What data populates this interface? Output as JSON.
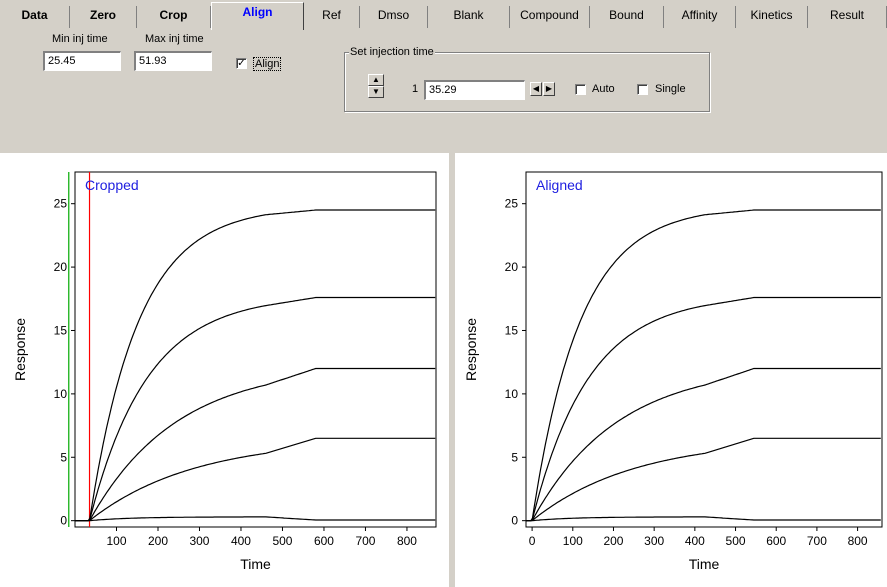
{
  "tabs": [
    {
      "label": "Data",
      "bold": true
    },
    {
      "label": "Zero",
      "bold": true
    },
    {
      "label": "Crop",
      "bold": true
    },
    {
      "label": "Align",
      "active": true
    },
    {
      "label": "Ref"
    },
    {
      "label": "Dmso"
    },
    {
      "label": "Blank"
    },
    {
      "label": "Compound"
    },
    {
      "label": "Bound"
    },
    {
      "label": "Affinity"
    },
    {
      "label": "Kinetics"
    },
    {
      "label": "Result"
    }
  ],
  "controls": {
    "min_inj_label": "Min inj time",
    "min_inj_value": "25.45",
    "max_inj_label": "Max inj time",
    "max_inj_value": "51.93",
    "align_label": "Align",
    "align_checked": "✓",
    "set_injection_label": "Set injection time",
    "injection_index": "1",
    "injection_value": "35.29",
    "auto_label": "Auto",
    "single_label": "Single"
  },
  "chart_data": [
    {
      "type": "line",
      "annotation": "Cropped",
      "xlabel": "Time",
      "ylabel": "Response",
      "xlim": [
        0,
        870
      ],
      "ylim": [
        -0.5,
        27.5
      ],
      "xticks": [
        100,
        200,
        300,
        400,
        500,
        600,
        700,
        800
      ],
      "yticks": [
        0,
        5,
        10,
        15,
        20,
        25
      ],
      "markers": [
        {
          "x": -15,
          "color": "#00aa00"
        },
        {
          "x": 35,
          "color": "#ff0000"
        }
      ],
      "series": [
        {
          "plateau": 24.5,
          "rmax": 24.8,
          "k": 0.0085,
          "t0": 35,
          "tend": 460
        },
        {
          "plateau": 17.6,
          "rmax": 17.8,
          "k": 0.0072,
          "t0": 35,
          "tend": 460
        },
        {
          "plateau": 12.0,
          "rmax": 12.3,
          "k": 0.0048,
          "t0": 35,
          "tend": 460
        },
        {
          "plateau": 6.5,
          "rmax": 6.5,
          "k": 0.004,
          "t0": 35,
          "tend": 460
        },
        {
          "plateau": 0.05,
          "rmax": 0.3,
          "k": 0.01,
          "t0": 35,
          "tend": 460
        }
      ]
    },
    {
      "type": "line",
      "annotation": "Aligned",
      "xlabel": "Time",
      "ylabel": "Response",
      "xlim": [
        -15,
        860
      ],
      "ylim": [
        -0.5,
        27.5
      ],
      "xticks": [
        0,
        100,
        200,
        300,
        400,
        500,
        600,
        700,
        800
      ],
      "yticks": [
        0,
        5,
        10,
        15,
        20,
        25
      ],
      "markers": [],
      "series": [
        {
          "plateau": 24.5,
          "rmax": 24.8,
          "k": 0.0085,
          "t0": 0,
          "tend": 425
        },
        {
          "plateau": 17.6,
          "rmax": 17.8,
          "k": 0.0072,
          "t0": 0,
          "tend": 425
        },
        {
          "plateau": 12.0,
          "rmax": 12.3,
          "k": 0.0048,
          "t0": 0,
          "tend": 425
        },
        {
          "plateau": 6.5,
          "rmax": 6.5,
          "k": 0.004,
          "t0": 0,
          "tend": 425
        },
        {
          "plateau": 0.05,
          "rmax": 0.3,
          "k": 0.01,
          "t0": 0,
          "tend": 425
        }
      ]
    }
  ]
}
